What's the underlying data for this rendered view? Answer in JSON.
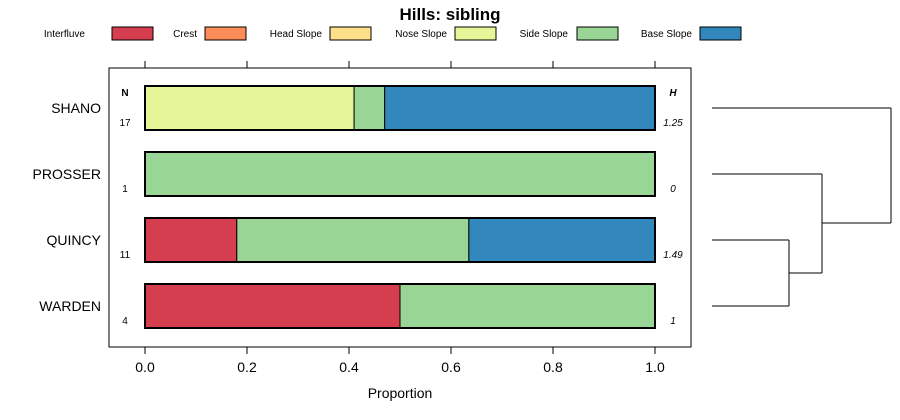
{
  "chart_data": {
    "type": "bar",
    "orientation": "horizontal",
    "stacked": true,
    "title": "Hills: sibling",
    "xlabel": "Proportion",
    "ylabel": "",
    "xlim": [
      0,
      1
    ],
    "x_ticks": [
      "0.0",
      "0.2",
      "0.4",
      "0.6",
      "0.8",
      "1.0"
    ],
    "legend": [
      {
        "name": "Interfluve",
        "color": "#d53e4f"
      },
      {
        "name": "Crest",
        "color": "#fc8d59"
      },
      {
        "name": "Head Slope",
        "color": "#fee08b"
      },
      {
        "name": "Nose Slope",
        "color": "#e6f598"
      },
      {
        "name": "Side Slope",
        "color": "#99d594"
      },
      {
        "name": "Base Slope",
        "color": "#3288bd"
      }
    ],
    "n_header": "N",
    "h_header": "H",
    "categories": [
      "SHANO",
      "PROSSER",
      "QUINCY",
      "WARDEN"
    ],
    "n": [
      "17",
      "1",
      "11",
      "4"
    ],
    "h": [
      "1.25",
      "0",
      "1.49",
      "1"
    ],
    "series": [
      {
        "name": "Interfluve",
        "values": [
          0,
          0,
          0.18,
          0.5
        ]
      },
      {
        "name": "Crest",
        "values": [
          0,
          0,
          0,
          0
        ]
      },
      {
        "name": "Head Slope",
        "values": [
          0,
          0,
          0,
          0
        ]
      },
      {
        "name": "Nose Slope",
        "values": [
          0.41,
          0,
          0,
          0
        ]
      },
      {
        "name": "Side Slope",
        "values": [
          0.06,
          1.0,
          0.455,
          0.5
        ]
      },
      {
        "name": "Base Slope",
        "values": [
          0.53,
          0,
          0.365,
          0
        ]
      }
    ],
    "dendrogram": "joins QUINCY with WARDEN, then PROSSER, then SHANO"
  }
}
